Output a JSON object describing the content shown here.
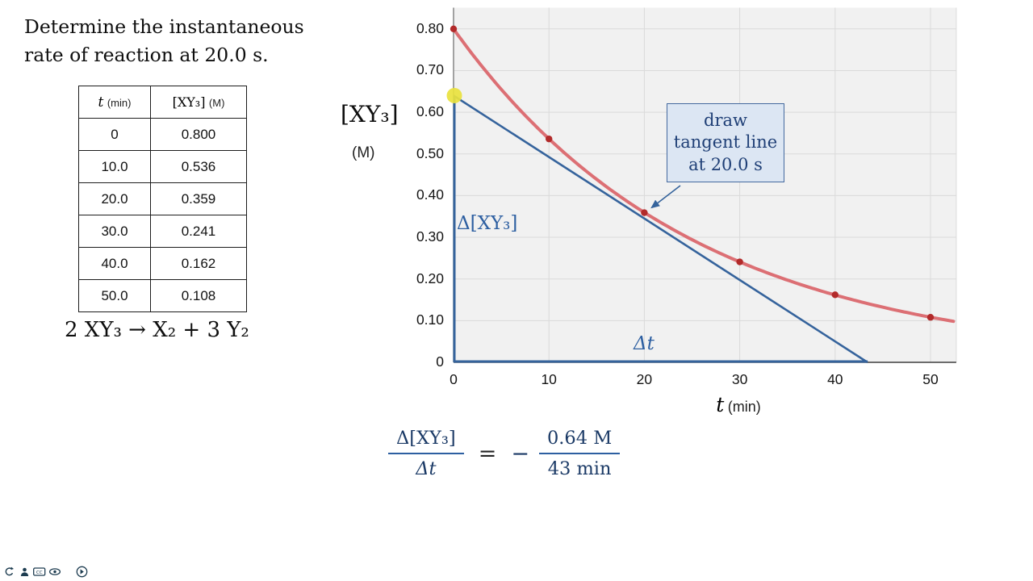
{
  "title": "Determine the instantaneous rate of reaction at 20.0 s.",
  "data_table": {
    "header_time_symbol": "t",
    "header_time_unit": "(min)",
    "header_conc_symbol": "[XY₃]",
    "header_conc_unit": "(M)",
    "rows": [
      [
        "0",
        "0.800"
      ],
      [
        "10.0",
        "0.536"
      ],
      [
        "20.0",
        "0.359"
      ],
      [
        "30.0",
        "0.241"
      ],
      [
        "40.0",
        "0.162"
      ],
      [
        "50.0",
        "0.108"
      ]
    ]
  },
  "equation": "2 XY₃ → X₂ + 3 Y₂",
  "chart_data": {
    "type": "line",
    "xlabel_symbol": "t",
    "xlabel_unit": "(min)",
    "ylabel_symbol": "[XY₃]",
    "ylabel_unit": "(M)",
    "x": [
      0,
      10,
      20,
      30,
      40,
      50
    ],
    "series": [
      {
        "name": "[XY₃] (M)",
        "values": [
          0.8,
          0.536,
          0.359,
          0.241,
          0.162,
          0.108
        ],
        "color": "#dc6f74",
        "point_color": "#b22a2a"
      }
    ],
    "xlim": [
      0,
      52.7
    ],
    "ylim": [
      0,
      0.851
    ],
    "grid": true,
    "x_ticks": [
      {
        "v": 0,
        "label": "0"
      },
      {
        "v": 10,
        "label": "10"
      },
      {
        "v": 20,
        "label": "20"
      },
      {
        "v": 30,
        "label": "30"
      },
      {
        "v": 40,
        "label": "40"
      },
      {
        "v": 50,
        "label": "50"
      }
    ],
    "y_ticks": [
      {
        "v": 0,
        "label": "0"
      },
      {
        "v": 0.1,
        "label": "0.10"
      },
      {
        "v": 0.2,
        "label": "0.20"
      },
      {
        "v": 0.3,
        "label": "0.30"
      },
      {
        "v": 0.4,
        "label": "0.40"
      },
      {
        "v": 0.5,
        "label": "0.50"
      },
      {
        "v": 0.6,
        "label": "0.60"
      },
      {
        "v": 0.7,
        "label": "0.70"
      },
      {
        "v": 0.8,
        "label": "0.80"
      }
    ],
    "curve_model": {
      "type": "exponential",
      "c0": 0.8,
      "tau_min": 25
    },
    "tangent": {
      "t": 20.0,
      "y_intercept": 0.64,
      "x_intercept": 43.4,
      "color": "#35639c"
    },
    "annotation": {
      "lines": [
        "draw",
        "tangent line",
        "at 20.0 s"
      ]
    },
    "delta_y_label": "Δ[XY₃]",
    "delta_x_label": "Δt"
  },
  "formula": {
    "numerator1": "Δ[XY₃]",
    "denominator1": "Δt",
    "equals": "=",
    "minus": "−",
    "numerator2": "0.64 M",
    "denominator2": "43 min"
  },
  "toolbar": {
    "icons": [
      "back-icon",
      "person-icon",
      "captions-icon",
      "eye-icon",
      "forward-icon"
    ]
  }
}
